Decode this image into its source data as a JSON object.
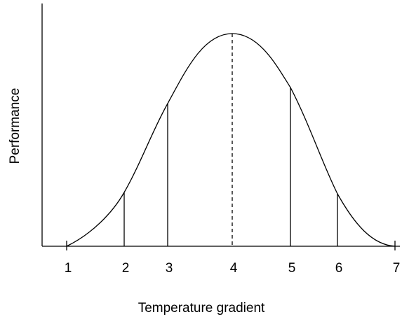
{
  "axes": {
    "x_label": "Temperature gradient",
    "y_label": "Performance"
  },
  "markers": [
    {
      "label": "1"
    },
    {
      "label": "2"
    },
    {
      "label": "3"
    },
    {
      "label": "4"
    },
    {
      "label": "5"
    },
    {
      "label": "6"
    },
    {
      "label": "7"
    }
  ]
}
